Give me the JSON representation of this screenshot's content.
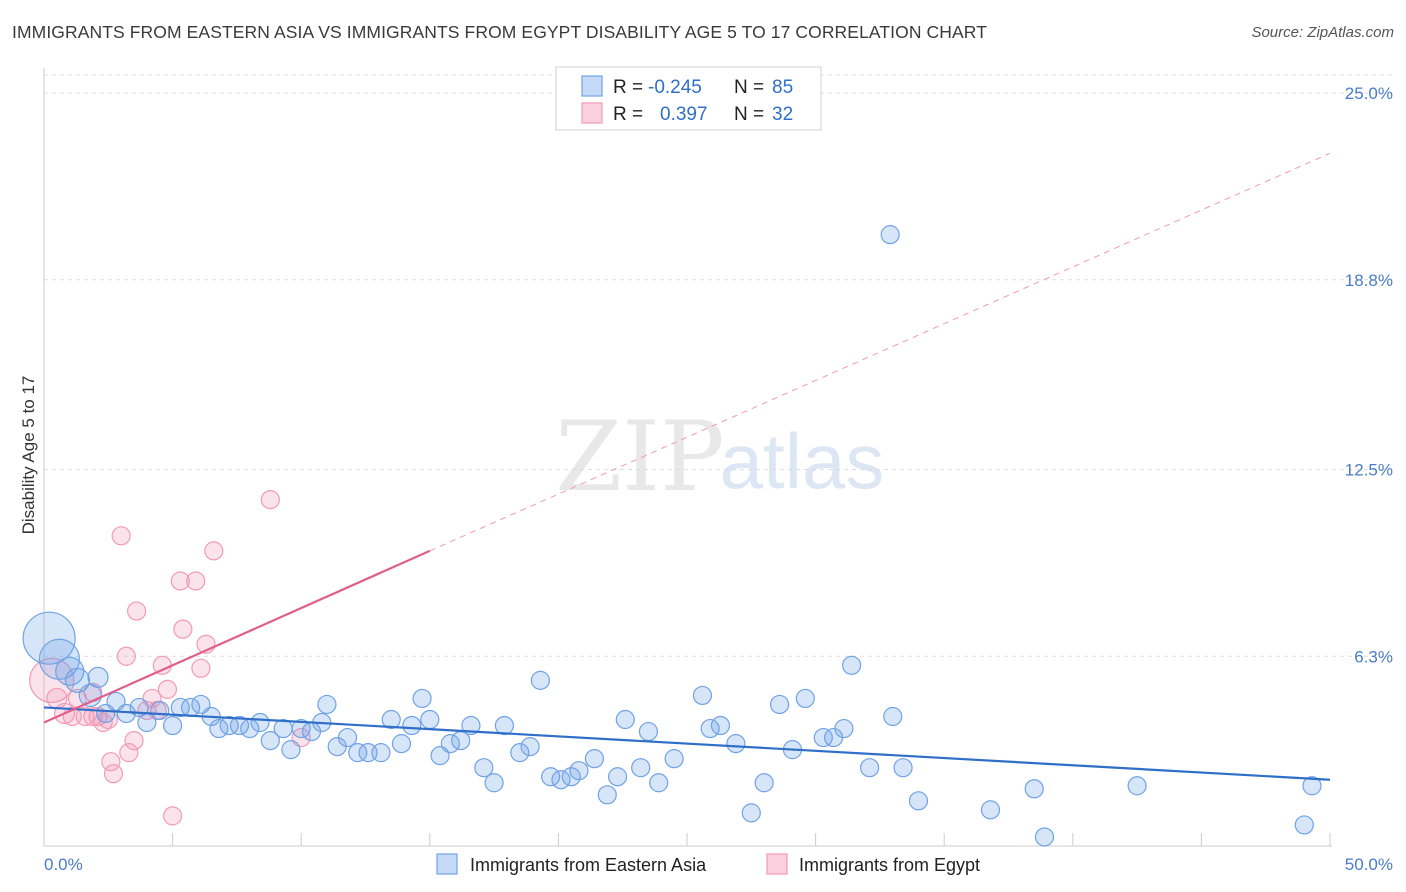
{
  "title": "IMMIGRANTS FROM EASTERN ASIA VS IMMIGRANTS FROM EGYPT DISABILITY AGE 5 TO 17 CORRELATION CHART",
  "source": "Source: ZipAtlas.com",
  "watermark": {
    "zip": "ZIP",
    "atlas": "atlas"
  },
  "colors": {
    "blue": "#6fa3e6",
    "blue_line": "#2f6fc9",
    "pink": "#f29ab8",
    "pink_line": "#e05e8a",
    "grid": "#dddddd",
    "tick_text": "#4a7cc8"
  },
  "legend": {
    "rows": [
      {
        "r_label": "R =",
        "r_value": "-0.245",
        "n_label": "N =",
        "n_value": "85"
      },
      {
        "r_label": "R =",
        "r_value": "0.397",
        "n_label": "N =",
        "n_value": "32"
      }
    ]
  },
  "bottom_legend": [
    "Immigrants from Eastern Asia",
    "Immigrants from Egypt"
  ],
  "chart_data": {
    "type": "scatter",
    "title": "IMMIGRANTS FROM EASTERN ASIA VS IMMIGRANTS FROM EGYPT DISABILITY AGE 5 TO 17 CORRELATION CHART",
    "xlabel": "",
    "ylabel": "Disability Age 5 to 17",
    "xlim": [
      0,
      50
    ],
    "ylim": [
      0,
      25.6
    ],
    "x_tick_labels": [
      "0.0%",
      "50.0%"
    ],
    "y_ticks": [
      6.3,
      12.5,
      18.8,
      25.0
    ],
    "y_tick_labels": [
      "6.3%",
      "12.5%",
      "18.8%",
      "25.0%"
    ],
    "grid": true,
    "legend_position": "top-center",
    "series": [
      {
        "name": "Immigrants from Eastern Asia",
        "color": "#6fa3e6",
        "trend": {
          "x0": 0,
          "y0": 4.6,
          "x1": 50,
          "y1": 2.2
        },
        "points": [
          [
            0.2,
            6.9,
            26
          ],
          [
            0.6,
            6.2,
            20
          ],
          [
            1.0,
            5.8,
            14
          ],
          [
            1.3,
            5.5,
            12
          ],
          [
            1.8,
            5.0,
            11
          ],
          [
            2.1,
            5.6,
            10
          ],
          [
            2.4,
            4.4,
            9
          ],
          [
            2.8,
            4.8,
            9
          ],
          [
            3.2,
            4.4,
            9
          ],
          [
            3.7,
            4.6,
            9
          ],
          [
            4.0,
            4.1,
            9
          ],
          [
            4.5,
            4.5,
            9
          ],
          [
            5.0,
            4.0,
            9
          ],
          [
            5.3,
            4.6,
            9
          ],
          [
            5.7,
            4.6,
            9
          ],
          [
            6.1,
            4.7,
            9
          ],
          [
            6.5,
            4.3,
            9
          ],
          [
            6.8,
            3.9,
            9
          ],
          [
            7.2,
            4.0,
            9
          ],
          [
            7.6,
            4.0,
            9
          ],
          [
            8.0,
            3.9,
            9
          ],
          [
            8.4,
            4.1,
            9
          ],
          [
            8.8,
            3.5,
            9
          ],
          [
            9.3,
            3.9,
            9
          ],
          [
            9.6,
            3.2,
            9
          ],
          [
            10.0,
            3.9,
            9
          ],
          [
            10.4,
            3.8,
            9
          ],
          [
            10.8,
            4.1,
            9
          ],
          [
            11.0,
            4.7,
            9
          ],
          [
            11.4,
            3.3,
            9
          ],
          [
            11.8,
            3.6,
            9
          ],
          [
            12.2,
            3.1,
            9
          ],
          [
            12.6,
            3.1,
            9
          ],
          [
            13.1,
            3.1,
            9
          ],
          [
            13.5,
            4.2,
            9
          ],
          [
            13.9,
            3.4,
            9
          ],
          [
            14.3,
            4.0,
            9
          ],
          [
            14.7,
            4.9,
            9
          ],
          [
            15.0,
            4.2,
            9
          ],
          [
            15.4,
            3.0,
            9
          ],
          [
            15.8,
            3.4,
            9
          ],
          [
            16.2,
            3.5,
            9
          ],
          [
            16.6,
            4.0,
            9
          ],
          [
            17.1,
            2.6,
            9
          ],
          [
            17.5,
            2.1,
            9
          ],
          [
            17.9,
            4.0,
            9
          ],
          [
            18.5,
            3.1,
            9
          ],
          [
            18.9,
            3.3,
            9
          ],
          [
            19.3,
            5.5,
            9
          ],
          [
            19.7,
            2.3,
            9
          ],
          [
            20.1,
            2.2,
            9
          ],
          [
            20.5,
            2.3,
            9
          ],
          [
            20.8,
            2.5,
            9
          ],
          [
            21.4,
            2.9,
            9
          ],
          [
            21.9,
            1.7,
            9
          ],
          [
            22.3,
            2.3,
            9
          ],
          [
            22.6,
            4.2,
            9
          ],
          [
            23.2,
            2.6,
            9
          ],
          [
            23.5,
            3.8,
            9
          ],
          [
            23.9,
            2.1,
            9
          ],
          [
            24.5,
            2.9,
            9
          ],
          [
            25.6,
            5.0,
            9
          ],
          [
            25.9,
            3.9,
            9
          ],
          [
            26.3,
            4.0,
            9
          ],
          [
            26.9,
            3.4,
            9
          ],
          [
            27.5,
            1.1,
            9
          ],
          [
            28.0,
            2.1,
            9
          ],
          [
            28.6,
            4.7,
            9
          ],
          [
            29.1,
            3.2,
            9
          ],
          [
            29.6,
            4.9,
            9
          ],
          [
            30.3,
            3.6,
            9
          ],
          [
            30.7,
            3.6,
            9
          ],
          [
            31.1,
            3.9,
            9
          ],
          [
            31.4,
            6.0,
            9
          ],
          [
            32.1,
            2.6,
            9
          ],
          [
            32.9,
            20.3,
            9
          ],
          [
            33.0,
            4.3,
            9
          ],
          [
            33.4,
            2.6,
            9
          ],
          [
            34.0,
            1.5,
            9
          ],
          [
            36.8,
            1.2,
            9
          ],
          [
            38.5,
            1.9,
            9
          ],
          [
            38.9,
            0.3,
            9
          ],
          [
            42.5,
            2.0,
            9
          ],
          [
            49.0,
            0.7,
            9
          ],
          [
            49.3,
            2.0,
            9
          ]
        ]
      },
      {
        "name": "Immigrants from Egypt",
        "color": "#f29ab8",
        "trend": {
          "x0": 0,
          "y0": 4.1,
          "x1": 15,
          "y1": 9.8
        },
        "trend_extended": {
          "x0": 15,
          "y0": 9.8,
          "x1": 50,
          "y1": 23.0
        },
        "points": [
          [
            0.3,
            5.5,
            22
          ],
          [
            0.5,
            4.9,
            10
          ],
          [
            0.8,
            4.4,
            10
          ],
          [
            1.1,
            4.3,
            9
          ],
          [
            1.3,
            4.9,
            9
          ],
          [
            1.6,
            4.3,
            9
          ],
          [
            1.9,
            5.1,
            9
          ],
          [
            2.1,
            4.3,
            9
          ],
          [
            2.3,
            4.1,
            9
          ],
          [
            2.5,
            4.2,
            9
          ],
          [
            2.6,
            2.8,
            9
          ],
          [
            2.7,
            2.4,
            9
          ],
          [
            3.0,
            10.3,
            9
          ],
          [
            3.2,
            6.3,
            9
          ],
          [
            3.3,
            3.1,
            9
          ],
          [
            3.5,
            3.5,
            9
          ],
          [
            3.6,
            7.8,
            9
          ],
          [
            4.0,
            4.5,
            9
          ],
          [
            4.2,
            4.9,
            9
          ],
          [
            4.6,
            6.0,
            9
          ],
          [
            4.8,
            5.2,
            9
          ],
          [
            5.0,
            1.0,
            9
          ],
          [
            5.3,
            8.8,
            9
          ],
          [
            5.4,
            7.2,
            9
          ],
          [
            5.9,
            8.8,
            9
          ],
          [
            6.1,
            5.9,
            9
          ],
          [
            6.3,
            6.7,
            9
          ],
          [
            6.6,
            9.8,
            9
          ],
          [
            8.8,
            11.5,
            9
          ],
          [
            10.0,
            3.6,
            9
          ],
          [
            4.4,
            4.5,
            9
          ],
          [
            1.9,
            4.3,
            9
          ]
        ]
      }
    ]
  }
}
